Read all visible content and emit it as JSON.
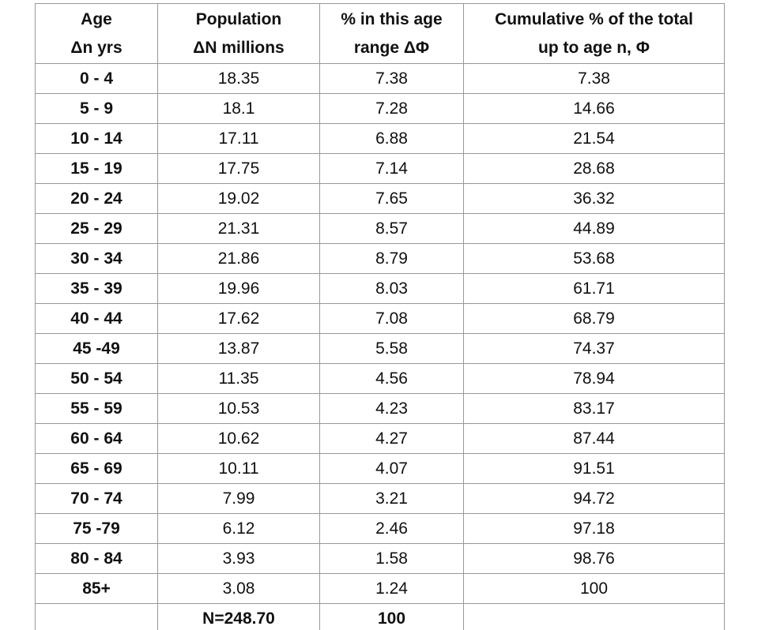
{
  "table": {
    "header": [
      {
        "line1": "Age",
        "line2": "Δn yrs"
      },
      {
        "line1": "Population",
        "line2": "ΔN millions"
      },
      {
        "line1": "% in this age",
        "line2": "range ΔΦ"
      },
      {
        "line1": "Cumulative % of the total",
        "line2": "up to age n, Φ"
      }
    ],
    "rows": [
      [
        "0 - 4",
        "18.35",
        "7.38",
        "7.38"
      ],
      [
        "5 - 9",
        "18.1",
        "7.28",
        "14.66"
      ],
      [
        "10 - 14",
        "17.11",
        "6.88",
        "21.54"
      ],
      [
        "15 - 19",
        "17.75",
        "7.14",
        "28.68"
      ],
      [
        "20 - 24",
        "19.02",
        "7.65",
        "36.32"
      ],
      [
        "25 - 29",
        "21.31",
        "8.57",
        "44.89"
      ],
      [
        "30 - 34",
        "21.86",
        "8.79",
        "53.68"
      ],
      [
        "35 - 39",
        "19.96",
        "8.03",
        "61.71"
      ],
      [
        "40 - 44",
        "17.62",
        "7.08",
        "68.79"
      ],
      [
        "45 -49",
        "13.87",
        "5.58",
        "74.37"
      ],
      [
        "50 - 54",
        "11.35",
        "4.56",
        "78.94"
      ],
      [
        "55 - 59",
        "10.53",
        "4.23",
        "83.17"
      ],
      [
        "60 - 64",
        "10.62",
        "4.27",
        "87.44"
      ],
      [
        "65 - 69",
        "10.11",
        "4.07",
        "91.51"
      ],
      [
        "70 - 74",
        "7.99",
        "3.21",
        "94.72"
      ],
      [
        "75 -79",
        "6.12",
        "2.46",
        "97.18"
      ],
      [
        "80 - 84",
        "3.93",
        "1.58",
        "98.76"
      ],
      [
        "85+",
        "3.08",
        "1.24",
        "100"
      ]
    ],
    "totals": {
      "population": "N=248.70",
      "percent": "100"
    }
  }
}
